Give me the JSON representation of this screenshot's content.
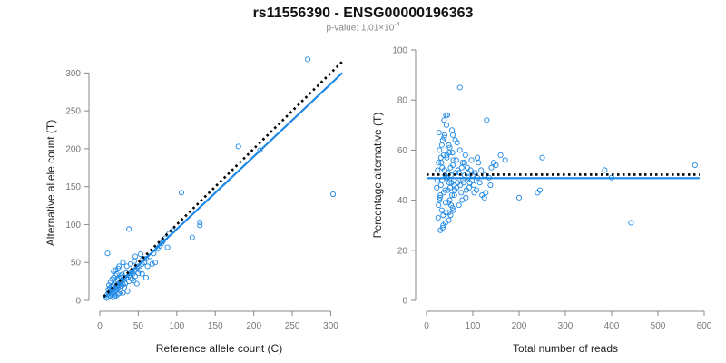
{
  "title": "rs11556390 - ENSG00000196363",
  "subtitle": {
    "prefix": "p-value: ",
    "mantissa": "1.01×10",
    "exponent": "-4"
  },
  "colors": {
    "series": "#1e88e5",
    "dotted": "#000000",
    "axis": "#888888"
  },
  "chart_data": [
    {
      "type": "scatter",
      "xlabel": "Reference allele count (C)",
      "ylabel": "Alternative allele count (T)",
      "xlim": [
        0,
        310
      ],
      "ylim": [
        0,
        310
      ],
      "xticks": [
        0,
        50,
        100,
        150,
        200,
        250,
        300
      ],
      "yticks": [
        0,
        50,
        100,
        150,
        200,
        250,
        300
      ],
      "grid": false,
      "lines": [
        {
          "style": "solid",
          "x": [
            5,
            315
          ],
          "y": [
            3,
            300
          ]
        },
        {
          "style": "dotted",
          "x": [
            5,
            315
          ],
          "y": [
            5,
            315
          ]
        }
      ],
      "points": [
        [
          10,
          8
        ],
        [
          12,
          10
        ],
        [
          14,
          12
        ],
        [
          15,
          14
        ],
        [
          16,
          13
        ],
        [
          18,
          15
        ],
        [
          20,
          17
        ],
        [
          22,
          19
        ],
        [
          24,
          20
        ],
        [
          26,
          23
        ],
        [
          28,
          24
        ],
        [
          30,
          27
        ],
        [
          32,
          28
        ],
        [
          35,
          30
        ],
        [
          38,
          33
        ],
        [
          40,
          36
        ],
        [
          42,
          38
        ],
        [
          45,
          40
        ],
        [
          48,
          43
        ],
        [
          50,
          45
        ],
        [
          11,
          14
        ],
        [
          13,
          16
        ],
        [
          15,
          18
        ],
        [
          17,
          20
        ],
        [
          19,
          22
        ],
        [
          21,
          25
        ],
        [
          23,
          27
        ],
        [
          25,
          29
        ],
        [
          27,
          32
        ],
        [
          29,
          34
        ],
        [
          14,
          9
        ],
        [
          16,
          11
        ],
        [
          18,
          12
        ],
        [
          20,
          13
        ],
        [
          22,
          15
        ],
        [
          24,
          16
        ],
        [
          26,
          18
        ],
        [
          28,
          19
        ],
        [
          30,
          21
        ],
        [
          33,
          22
        ],
        [
          12,
          20
        ],
        [
          14,
          24
        ],
        [
          16,
          28
        ],
        [
          18,
          30
        ],
        [
          20,
          33
        ],
        [
          22,
          35
        ],
        [
          19,
          5
        ],
        [
          21,
          6
        ],
        [
          23,
          8
        ],
        [
          25,
          9
        ],
        [
          35,
          45
        ],
        [
          40,
          48
        ],
        [
          45,
          52
        ],
        [
          38,
          25
        ],
        [
          42,
          28
        ],
        [
          46,
          32
        ],
        [
          50,
          36
        ],
        [
          52,
          40
        ],
        [
          55,
          48
        ],
        [
          58,
          50
        ],
        [
          60,
          55
        ],
        [
          65,
          58
        ],
        [
          70,
          62
        ],
        [
          62,
          45
        ],
        [
          68,
          48
        ],
        [
          72,
          50
        ],
        [
          75,
          68
        ],
        [
          78,
          72
        ],
        [
          80,
          75
        ],
        [
          85,
          82
        ],
        [
          20,
          40
        ],
        [
          25,
          45
        ],
        [
          30,
          50
        ],
        [
          18,
          38
        ],
        [
          24,
          42
        ],
        [
          10,
          62
        ],
        [
          38,
          94
        ],
        [
          53,
          61
        ],
        [
          46,
          58
        ],
        [
          56,
          55
        ],
        [
          90,
          88
        ],
        [
          95,
          92
        ],
        [
          82,
          78
        ],
        [
          88,
          70
        ],
        [
          106,
          142
        ],
        [
          120,
          83
        ],
        [
          130,
          103
        ],
        [
          130,
          99
        ],
        [
          180,
          203
        ],
        [
          208,
          198
        ],
        [
          270,
          318
        ],
        [
          303,
          140
        ],
        [
          60,
          30
        ],
        [
          55,
          35
        ],
        [
          48,
          22
        ],
        [
          44,
          26
        ],
        [
          36,
          12
        ],
        [
          32,
          18
        ],
        [
          28,
          30
        ],
        [
          34,
          36
        ],
        [
          30,
          10
        ],
        [
          27,
          12
        ],
        [
          17,
          4
        ],
        [
          13,
          6
        ],
        [
          9,
          3
        ],
        [
          11,
          5
        ],
        [
          40,
          30
        ],
        [
          43,
          35
        ]
      ]
    },
    {
      "type": "scatter",
      "xlabel": "Total number of reads",
      "ylabel": "Percentage alternative (T)",
      "xlim": [
        0,
        600
      ],
      "ylim": [
        0,
        100
      ],
      "xticks": [
        0,
        100,
        200,
        300,
        400,
        500,
        600
      ],
      "yticks": [
        0,
        20,
        40,
        60,
        80,
        100
      ],
      "grid": false,
      "lines": [
        {
          "style": "solid",
          "x": [
            0,
            590
          ],
          "y": [
            48.8,
            48.8
          ]
        },
        {
          "style": "dotted",
          "x": [
            0,
            590
          ],
          "y": [
            50.2,
            50.2
          ]
        }
      ],
      "points": [
        [
          22,
          45
        ],
        [
          24,
          52
        ],
        [
          26,
          38
        ],
        [
          28,
          60
        ],
        [
          30,
          42
        ],
        [
          32,
          55
        ],
        [
          34,
          48
        ],
        [
          36,
          30
        ],
        [
          38,
          65
        ],
        [
          40,
          50
        ],
        [
          42,
          35
        ],
        [
          44,
          58
        ],
        [
          46,
          44
        ],
        [
          48,
          62
        ],
        [
          50,
          40
        ],
        [
          52,
          53
        ],
        [
          54,
          47
        ],
        [
          56,
          37
        ],
        [
          58,
          56
        ],
        [
          60,
          46
        ],
        [
          25,
          33
        ],
        [
          27,
          67
        ],
        [
          29,
          41
        ],
        [
          31,
          57
        ],
        [
          33,
          36
        ],
        [
          35,
          64
        ],
        [
          37,
          43
        ],
        [
          39,
          52
        ],
        [
          41,
          31
        ],
        [
          43,
          70
        ],
        [
          45,
          49
        ],
        [
          47,
          39
        ],
        [
          49,
          59
        ],
        [
          51,
          45
        ],
        [
          53,
          50
        ],
        [
          55,
          42
        ],
        [
          57,
          54
        ],
        [
          59,
          48
        ],
        [
          61,
          44
        ],
        [
          63,
          51
        ],
        [
          23,
          48
        ],
        [
          26,
          55
        ],
        [
          28,
          40
        ],
        [
          31,
          46
        ],
        [
          34,
          53
        ],
        [
          37,
          58
        ],
        [
          40,
          44
        ],
        [
          43,
          49
        ],
        [
          46,
          51
        ],
        [
          49,
          47
        ],
        [
          30,
          28
        ],
        [
          35,
          29
        ],
        [
          38,
          72
        ],
        [
          42,
          74
        ],
        [
          45,
          74
        ],
        [
          48,
          32
        ],
        [
          52,
          34
        ],
        [
          55,
          68
        ],
        [
          58,
          36
        ],
        [
          62,
          64
        ],
        [
          65,
          45
        ],
        [
          68,
          52
        ],
        [
          70,
          38
        ],
        [
          72,
          60
        ],
        [
          75,
          43
        ],
        [
          78,
          55
        ],
        [
          80,
          47
        ],
        [
          82,
          50
        ],
        [
          85,
          41
        ],
        [
          88,
          53
        ],
        [
          90,
          49
        ],
        [
          92,
          45
        ],
        [
          95,
          52
        ],
        [
          98,
          48
        ],
        [
          100,
          50
        ],
        [
          102,
          46
        ],
        [
          105,
          51
        ],
        [
          108,
          44
        ],
        [
          110,
          49
        ],
        [
          112,
          55
        ],
        [
          115,
          47
        ],
        [
          118,
          52
        ],
        [
          120,
          42
        ],
        [
          125,
          50
        ],
        [
          128,
          43
        ],
        [
          130,
          72
        ],
        [
          135,
          49
        ],
        [
          140,
          53
        ],
        [
          145,
          55
        ],
        [
          150,
          54
        ],
        [
          33,
          62
        ],
        [
          36,
          34
        ],
        [
          39,
          66
        ],
        [
          41,
          39
        ],
        [
          44,
          57
        ],
        [
          47,
          35
        ],
        [
          50,
          61
        ],
        [
          53,
          38
        ],
        [
          56,
          59
        ],
        [
          60,
          42
        ],
        [
          64,
          56
        ],
        [
          67,
          47
        ],
        [
          70,
          51
        ],
        [
          73,
          46
        ],
        [
          76,
          53
        ],
        [
          79,
          48
        ],
        [
          82,
          55
        ],
        [
          86,
          44
        ],
        [
          89,
          51
        ],
        [
          93,
          47
        ],
        [
          72,
          85
        ],
        [
          160,
          58
        ],
        [
          170,
          56
        ],
        [
          200,
          41
        ],
        [
          240,
          43
        ],
        [
          245,
          44
        ],
        [
          250,
          57
        ],
        [
          385,
          52
        ],
        [
          400,
          49
        ],
        [
          442,
          31
        ],
        [
          580,
          54
        ],
        [
          125,
          41
        ],
        [
          138,
          46
        ],
        [
          110,
          57
        ],
        [
          103,
          43
        ],
        [
          97,
          56
        ],
        [
          84,
          58
        ],
        [
          77,
          40
        ],
        [
          66,
          63
        ],
        [
          57,
          66
        ]
      ]
    }
  ]
}
